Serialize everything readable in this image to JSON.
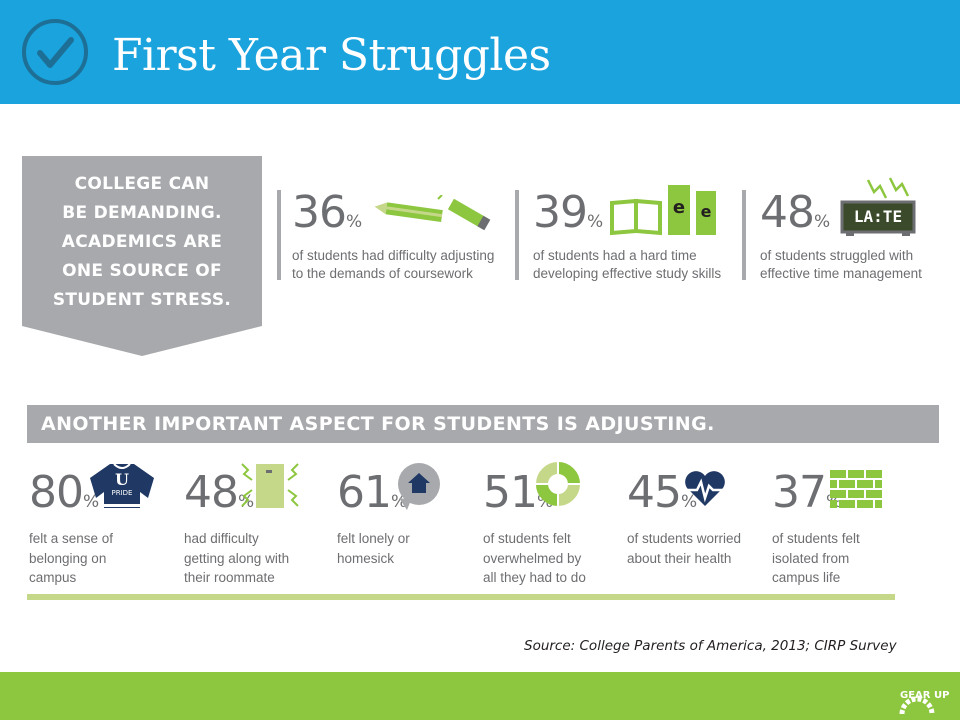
{
  "header": {
    "title": "First Year Struggles",
    "icon": "check-circle-icon",
    "background": "#1aa3dd"
  },
  "banner": {
    "lines": [
      "COLLEGE CAN",
      "BE DEMANDING.",
      "ACADEMICS ARE",
      "ONE SOURCE OF",
      "STUDENT STRESS."
    ],
    "color": "#a7a9ac"
  },
  "academics": [
    {
      "value": "36",
      "unit": "%",
      "lines": [
        "of students had difficulty adjusting",
        "to the demands of coursework"
      ],
      "icon": "pencil-icon"
    },
    {
      "value": "39",
      "unit": "%",
      "lines": [
        "of students had a hard time",
        "developing effective study skills"
      ],
      "icon": "book-icon"
    },
    {
      "value": "48",
      "unit": "%",
      "lines": [
        "of students struggled with",
        "effective time management"
      ],
      "icon": "clock-icon",
      "icon_text": "LA:TE"
    }
  ],
  "adjusting": {
    "heading": "ANOTHER IMPORTANT ASPECT FOR STUDENTS IS ADJUSTING.",
    "stats": [
      {
        "value": "80",
        "unit": "%",
        "lines": [
          "felt a sense of",
          "belonging on",
          "campus"
        ],
        "icon": "sweater-icon",
        "icon_text_top": "U",
        "icon_text_bottom": "PRIDE"
      },
      {
        "value": "48",
        "unit": "%",
        "lines": [
          "had difficulty",
          "getting along with",
          "their roommate"
        ],
        "icon": "door-icon"
      },
      {
        "value": "61",
        "unit": "%",
        "lines": [
          "felt lonely or",
          "homesick"
        ],
        "icon": "home-bubble-icon"
      },
      {
        "value": "51",
        "unit": "%",
        "lines": [
          "of students felt",
          "overwhelmed by",
          "all they had to do"
        ],
        "icon": "donut-icon"
      },
      {
        "value": "45",
        "unit": "%",
        "lines": [
          "of students worried",
          "about their health"
        ],
        "icon": "heartbeat-icon"
      },
      {
        "value": "37",
        "unit": "%",
        "lines": [
          "of students felt",
          "isolated from",
          "campus life"
        ],
        "icon": "brick-wall-icon"
      }
    ]
  },
  "source": "Source: College Parents of America, 2013; CIRP Survey",
  "footer": {
    "logo": "gear-up-logo-icon",
    "logo_text": "GEAR UP",
    "color": "#8dc63f"
  },
  "colors": {
    "accent_green": "#8dc63f",
    "light_green": "#c5d88a",
    "gray": "#a7a9ac",
    "navy": "#1f3864"
  }
}
